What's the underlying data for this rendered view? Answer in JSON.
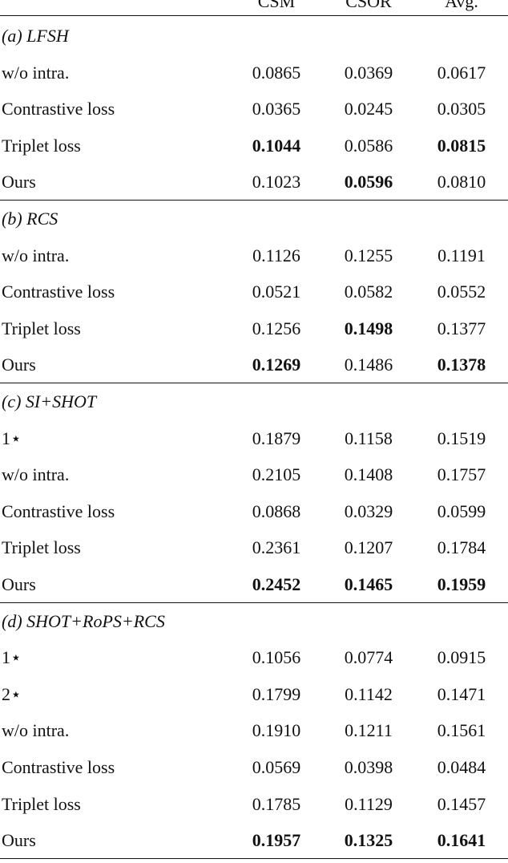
{
  "header": [
    "CSM",
    "CSOR",
    "Avg."
  ],
  "sections": [
    {
      "title": "(a) LFSH",
      "rows": [
        {
          "label": "w/o intra.",
          "cells": [
            {
              "text": "0.0865"
            },
            {
              "text": "0.0369"
            },
            {
              "text": "0.0617"
            }
          ]
        },
        {
          "label": "Contrastive loss",
          "cells": [
            {
              "text": "0.0365"
            },
            {
              "text": "0.0245"
            },
            {
              "text": "0.0305"
            }
          ]
        },
        {
          "label": "Triplet loss",
          "cells": [
            {
              "text": "0.1044",
              "bold": true
            },
            {
              "text": "0.0586"
            },
            {
              "text": "0.0815",
              "bold": true
            }
          ]
        },
        {
          "label": "Ours",
          "cells": [
            {
              "text": "0.1023"
            },
            {
              "text": "0.0596",
              "bold": true
            },
            {
              "text": "0.0810"
            }
          ]
        }
      ]
    },
    {
      "title": "(b) RCS",
      "rows": [
        {
          "label": "w/o intra.",
          "cells": [
            {
              "text": "0.1126"
            },
            {
              "text": "0.1255"
            },
            {
              "text": "0.1191"
            }
          ]
        },
        {
          "label": "Contrastive loss",
          "cells": [
            {
              "text": "0.0521"
            },
            {
              "text": "0.0582"
            },
            {
              "text": "0.0552"
            }
          ]
        },
        {
          "label": "Triplet loss",
          "cells": [
            {
              "text": "0.1256"
            },
            {
              "text": "0.1498",
              "bold": true
            },
            {
              "text": "0.1377"
            }
          ]
        },
        {
          "label": "Ours",
          "cells": [
            {
              "text": "0.1269",
              "bold": true
            },
            {
              "text": "0.1486"
            },
            {
              "text": "0.1378",
              "bold": true
            }
          ]
        }
      ]
    },
    {
      "title": "(c) SI+SHOT",
      "rows": [
        {
          "label": "1⋆",
          "cells": [
            {
              "text": "0.1879"
            },
            {
              "text": "0.1158"
            },
            {
              "text": "0.1519"
            }
          ]
        },
        {
          "label": "w/o intra.",
          "cells": [
            {
              "text": "0.2105"
            },
            {
              "text": "0.1408"
            },
            {
              "text": "0.1757"
            }
          ]
        },
        {
          "label": "Contrastive loss",
          "cells": [
            {
              "text": "0.0868"
            },
            {
              "text": "0.0329"
            },
            {
              "text": "0.0599"
            }
          ]
        },
        {
          "label": "Triplet loss",
          "cells": [
            {
              "text": "0.2361"
            },
            {
              "text": "0.1207"
            },
            {
              "text": "0.1784"
            }
          ]
        },
        {
          "label": "Ours",
          "cells": [
            {
              "text": "0.2452",
              "bold": true
            },
            {
              "text": "0.1465",
              "bold": true
            },
            {
              "text": "0.1959",
              "bold": true
            }
          ]
        }
      ]
    },
    {
      "title": "(d) SHOT+RoPS+RCS",
      "rows": [
        {
          "label": "1⋆",
          "cells": [
            {
              "text": "0.1056"
            },
            {
              "text": "0.0774"
            },
            {
              "text": "0.0915"
            }
          ]
        },
        {
          "label": "2⋆",
          "cells": [
            {
              "text": "0.1799"
            },
            {
              "text": "0.1142"
            },
            {
              "text": "0.1471"
            }
          ]
        },
        {
          "label": "w/o intra.",
          "cells": [
            {
              "text": "0.1910"
            },
            {
              "text": "0.1211"
            },
            {
              "text": "0.1561"
            }
          ]
        },
        {
          "label": "Contrastive loss",
          "cells": [
            {
              "text": "0.0569"
            },
            {
              "text": "0.0398"
            },
            {
              "text": "0.0484"
            }
          ]
        },
        {
          "label": "Triplet loss",
          "cells": [
            {
              "text": "0.1785"
            },
            {
              "text": "0.1129"
            },
            {
              "text": "0.1457"
            }
          ]
        },
        {
          "label": "Ours",
          "cells": [
            {
              "text": "0.1957",
              "bold": true
            },
            {
              "text": "0.1325",
              "bold": true
            },
            {
              "text": "0.1641",
              "bold": true
            }
          ]
        }
      ]
    }
  ]
}
